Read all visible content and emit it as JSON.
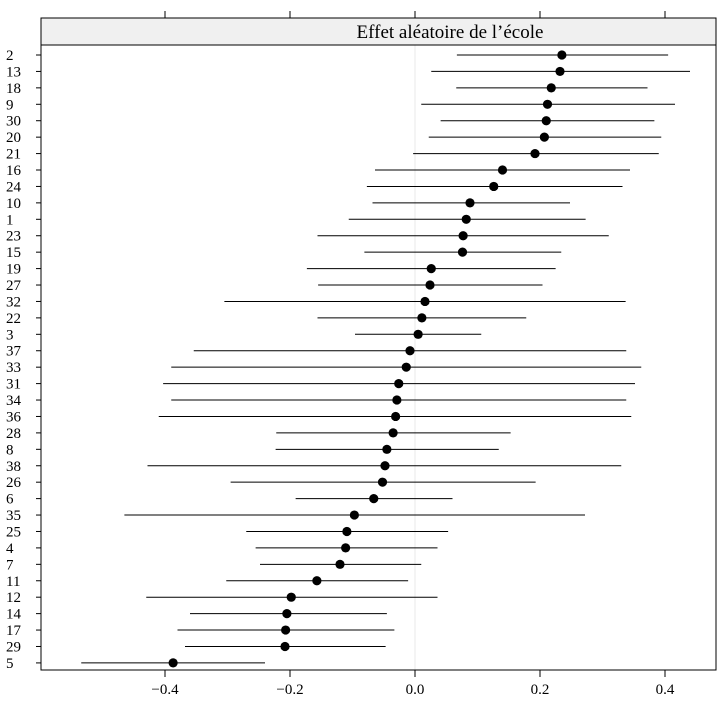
{
  "chart_data": {
    "type": "dotplot",
    "title": "Effet aléatoire de l’école",
    "xlim": [
      -0.6,
      0.48
    ],
    "x_ticks": [
      -0.4,
      -0.2,
      0.0,
      0.2,
      0.4
    ],
    "x_tick_labels": [
      "−0.4",
      "−0.2",
      "0.0",
      "0.2",
      "0.4"
    ],
    "reference_line": 0,
    "colors": {
      "strip": "#f0f0f0",
      "point": "#000000",
      "interval": "#000000",
      "reference": "#e8e8e8"
    },
    "categories": [
      "2",
      "13",
      "18",
      "9",
      "30",
      "20",
      "21",
      "16",
      "24",
      "10",
      "1",
      "23",
      "15",
      "19",
      "27",
      "32",
      "22",
      "3",
      "37",
      "33",
      "31",
      "34",
      "36",
      "28",
      "8",
      "38",
      "26",
      "6",
      "35",
      "25",
      "4",
      "7",
      "11",
      "12",
      "14",
      "17",
      "29",
      "5"
    ],
    "estimate": [
      0.235,
      0.232,
      0.218,
      0.212,
      0.21,
      0.207,
      0.192,
      0.14,
      0.126,
      0.088,
      0.082,
      0.077,
      0.076,
      0.026,
      0.024,
      0.016,
      0.011,
      0.005,
      -0.008,
      -0.014,
      -0.026,
      -0.029,
      -0.031,
      -0.035,
      -0.045,
      -0.048,
      -0.052,
      -0.066,
      -0.097,
      -0.109,
      -0.111,
      -0.12,
      -0.157,
      -0.198,
      -0.205,
      -0.207,
      -0.208,
      -0.387
    ],
    "lower": [
      0.067,
      0.026,
      0.066,
      0.01,
      0.041,
      0.022,
      -0.003,
      -0.064,
      -0.077,
      -0.068,
      -0.106,
      -0.156,
      -0.081,
      -0.173,
      -0.155,
      -0.305,
      -0.156,
      -0.096,
      -0.354,
      -0.39,
      -0.403,
      -0.39,
      -0.41,
      -0.222,
      -0.223,
      -0.428,
      -0.295,
      -0.191,
      -0.465,
      -0.27,
      -0.255,
      -0.248,
      -0.302,
      -0.43,
      -0.36,
      -0.38,
      -0.368,
      -0.534
    ],
    "upper": [
      0.405,
      0.44,
      0.372,
      0.416,
      0.383,
      0.394,
      0.39,
      0.344,
      0.332,
      0.248,
      0.273,
      0.31,
      0.234,
      0.225,
      0.204,
      0.337,
      0.178,
      0.106,
      0.338,
      0.362,
      0.352,
      0.338,
      0.346,
      0.153,
      0.134,
      0.33,
      0.193,
      0.06,
      0.272,
      0.053,
      0.036,
      0.01,
      -0.011,
      0.036,
      -0.045,
      -0.033,
      -0.047,
      -0.24
    ]
  }
}
